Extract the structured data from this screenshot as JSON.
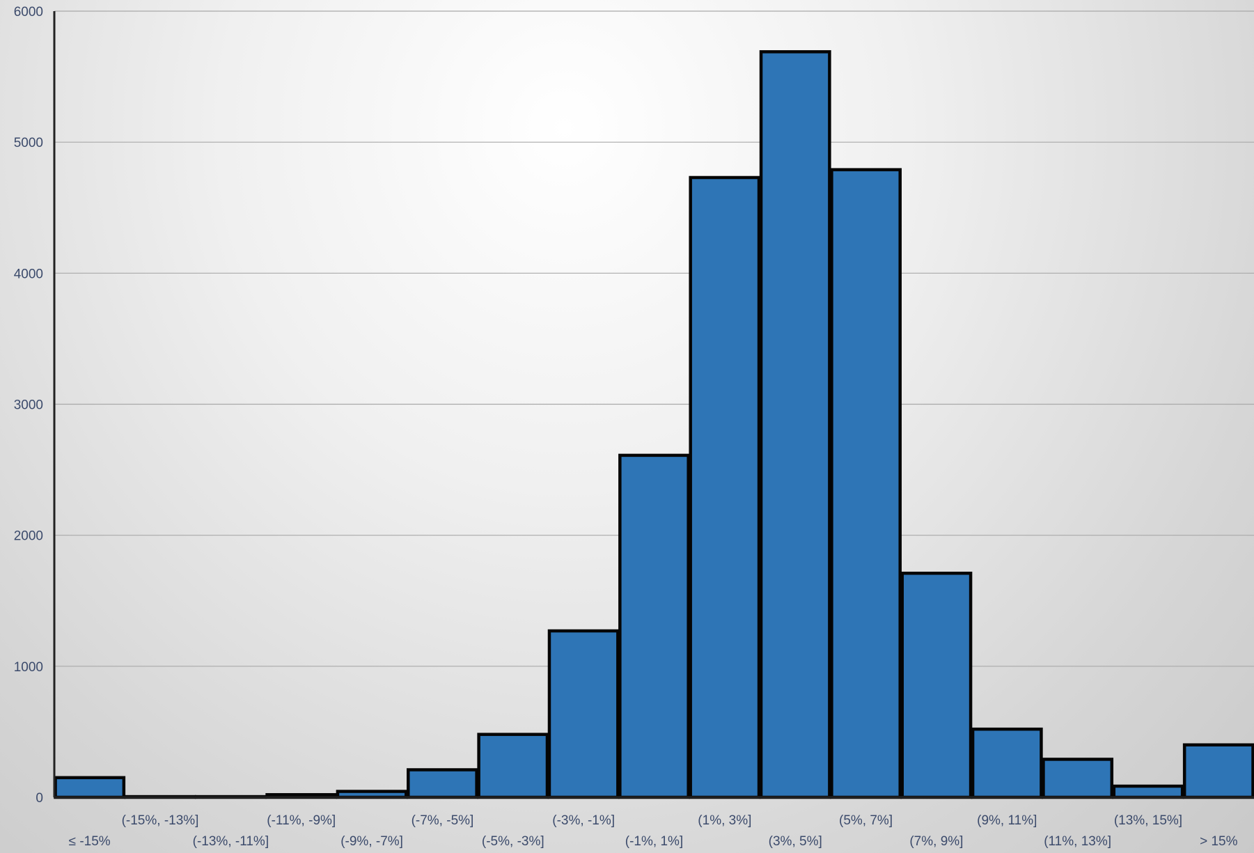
{
  "chart_data": {
    "type": "bar",
    "title": "",
    "xlabel": "",
    "ylabel": "",
    "categories": [
      "≤ -15%",
      "(-15%, -13%]",
      "(-13%, -11%]",
      "(-11%, -9%]",
      "(-9%, -7%]",
      "(-7%, -5%]",
      "(-5%, -3%]",
      "(-3%, -1%]",
      "(-1%, 1%]",
      "(1%, 3%]",
      "(3%, 5%]",
      "(5%, 7%]",
      "(7%, 9%]",
      "(9%, 11%]",
      "(11%, 13%]",
      "(13%, 15%]",
      "> 15%"
    ],
    "values": [
      150,
      5,
      5,
      20,
      45,
      210,
      480,
      1270,
      2610,
      4730,
      5690,
      4790,
      1710,
      520,
      290,
      85,
      400
    ],
    "ylim": [
      0,
      6000
    ],
    "yticks": [
      "0",
      "1000",
      "2000",
      "3000",
      "4000",
      "5000",
      "6000"
    ],
    "grid": true,
    "bar_color": "#2e75b6",
    "bar_outline_color": "#050505"
  }
}
